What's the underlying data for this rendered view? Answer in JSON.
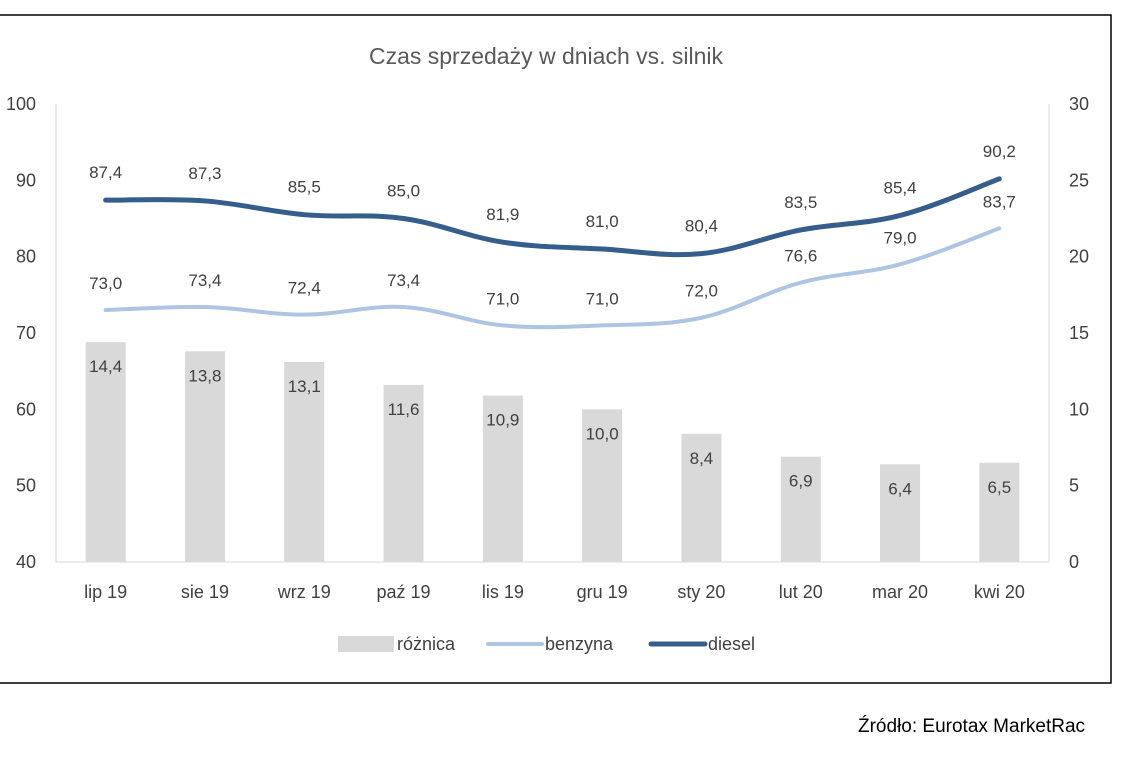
{
  "source_note": "Źródło: Eurotax MarketRac",
  "colors": {
    "bar": "#d9d9d9",
    "benzyna": "#adc5e2",
    "diesel": "#355e8c",
    "grid": "#d9d9d9",
    "text": "#404040",
    "title": "#595959",
    "frame": "#000000"
  },
  "chart_data": {
    "type": "bar",
    "title": "Czas sprzedaży w dniach vs. silnik",
    "categories": [
      "lip 19",
      "sie 19",
      "wrz 19",
      "paź 19",
      "lis 19",
      "gru 19",
      "sty 20",
      "lut 20",
      "mar 20",
      "kwi 20"
    ],
    "y_left": {
      "min": 40,
      "max": 100,
      "step": 10,
      "ticks": [
        "40",
        "50",
        "60",
        "70",
        "80",
        "90",
        "100"
      ]
    },
    "y_right": {
      "min": 0,
      "max": 30,
      "step": 5,
      "ticks": [
        "0",
        "5",
        "10",
        "15",
        "20",
        "25",
        "30"
      ]
    },
    "grid": false,
    "legend_position": "bottom",
    "series": [
      {
        "name": "różnica",
        "kind": "bar",
        "axis": "right",
        "values": [
          14.4,
          13.8,
          13.1,
          11.6,
          10.9,
          10.0,
          8.4,
          6.9,
          6.4,
          6.5
        ],
        "labels": [
          "14,4",
          "13,8",
          "13,1",
          "11,6",
          "10,9",
          "10,0",
          "8,4",
          "6,9",
          "6,4",
          "6,5"
        ]
      },
      {
        "name": "benzyna",
        "kind": "line",
        "axis": "left",
        "values": [
          73.0,
          73.4,
          72.4,
          73.4,
          71.0,
          71.0,
          72.0,
          76.6,
          79.0,
          83.7
        ],
        "labels": [
          "73,0",
          "73,4",
          "72,4",
          "73,4",
          "71,0",
          "71,0",
          "72,0",
          "76,6",
          "79,0",
          "83,7"
        ]
      },
      {
        "name": "diesel",
        "kind": "line",
        "axis": "left",
        "values": [
          87.4,
          87.3,
          85.5,
          85.0,
          81.9,
          81.0,
          80.4,
          83.5,
          85.4,
          90.2
        ],
        "labels": [
          "87,4",
          "87,3",
          "85,5",
          "85,0",
          "81,9",
          "81,0",
          "80,4",
          "83,5",
          "85,4",
          "90,2"
        ]
      }
    ]
  }
}
